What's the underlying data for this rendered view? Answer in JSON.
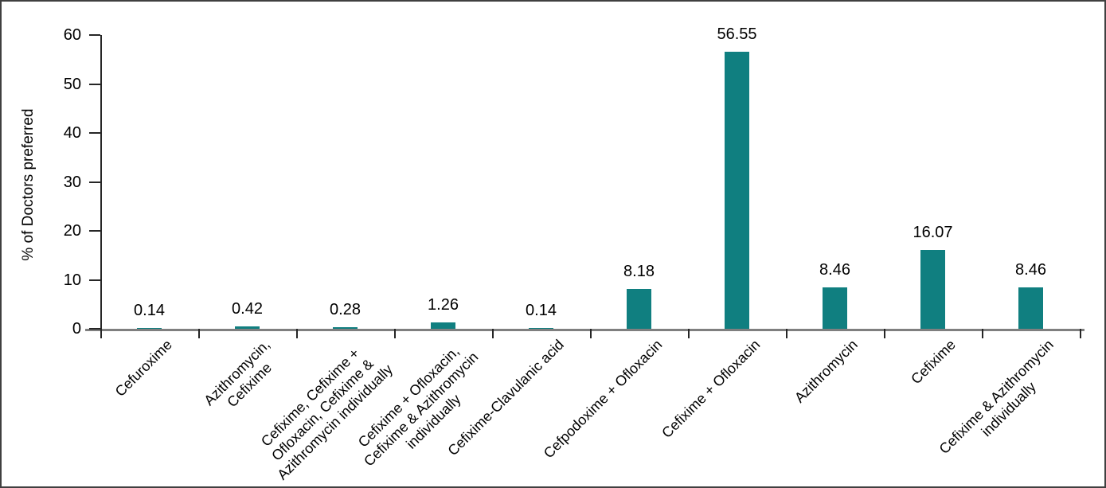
{
  "chart_data": {
    "type": "bar",
    "title": "",
    "ylabel": "% of Doctors preferred",
    "xlabel": "",
    "ylim": [
      0,
      60
    ],
    "yticks": [
      0,
      10,
      20,
      30,
      40,
      50,
      60
    ],
    "grid": false,
    "legend_position": "none",
    "bar_color": "#107f80",
    "axis_line_color": "#262626",
    "baseline_color": "#7f7f7f",
    "categories": [
      "Cefuroxime",
      "Azithromycin,\nCefixime",
      "Cefixime, Cefixime +\nOfloxacin, Cefixime &\nAzithromycin individually",
      "Cefixime + Ofloxacin,\nCefixime & Azithromycin\nindividually",
      "Cefixime-Clavulanic acid",
      "Cefpodoxime + Ofloxacin",
      "Cefixime + Ofloxacin",
      "Azithromycin",
      "Cefixime",
      "Cefixime & Azithromycin\nindividually"
    ],
    "values": [
      0.14,
      0.42,
      0.28,
      1.26,
      0.14,
      8.18,
      56.55,
      8.46,
      16.07,
      8.46
    ],
    "value_labels": [
      "0.14",
      "0.42",
      "0.28",
      "1.26",
      "0.14",
      "8.18",
      "56.55",
      "8.46",
      "16.07",
      "8.46"
    ]
  }
}
